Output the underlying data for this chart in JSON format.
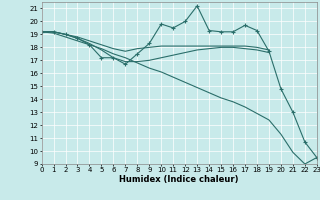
{
  "xlabel": "Humidex (Indice chaleur)",
  "bg_color": "#c8eaea",
  "grid_color": "#ffffff",
  "line_color": "#2a6e6a",
  "x_ticks": [
    0,
    1,
    2,
    3,
    4,
    5,
    6,
    7,
    8,
    9,
    10,
    11,
    12,
    13,
    14,
    15,
    16,
    17,
    18,
    19,
    20,
    21,
    22,
    23
  ],
  "y_ticks": [
    9,
    10,
    11,
    12,
    13,
    14,
    15,
    16,
    17,
    18,
    19,
    20,
    21
  ],
  "xlim": [
    0,
    23
  ],
  "ylim": [
    9,
    21.5
  ],
  "lines": [
    {
      "x": [
        0,
        1,
        2,
        3,
        4,
        5,
        6,
        7,
        8,
        9,
        10,
        11,
        12,
        13,
        14,
        15,
        16,
        17,
        18,
        19,
        20,
        21,
        22,
        23
      ],
      "y": [
        19.2,
        19.2,
        19.0,
        18.7,
        18.2,
        17.2,
        17.2,
        16.7,
        17.5,
        18.3,
        19.8,
        19.5,
        20.0,
        21.2,
        19.3,
        19.2,
        19.2,
        19.7,
        19.3,
        17.7,
        14.8,
        13.0,
        10.7,
        9.5
      ],
      "marker": true
    },
    {
      "x": [
        0,
        1,
        2,
        3,
        4,
        5,
        6,
        7,
        8,
        9,
        10,
        11,
        12,
        13,
        14,
        15,
        16,
        17,
        18,
        19
      ],
      "y": [
        19.2,
        19.2,
        19.0,
        18.8,
        18.5,
        18.2,
        17.9,
        17.7,
        17.9,
        18.0,
        18.1,
        18.1,
        18.1,
        18.1,
        18.1,
        18.1,
        18.1,
        18.1,
        18.0,
        17.8
      ],
      "marker": false
    },
    {
      "x": [
        0,
        1,
        2,
        3,
        4,
        5,
        6,
        7,
        8,
        9,
        10,
        11,
        12,
        13,
        14,
        15,
        16,
        17,
        18,
        19
      ],
      "y": [
        19.2,
        19.2,
        19.0,
        18.7,
        18.3,
        17.8,
        17.2,
        16.9,
        16.9,
        17.0,
        17.2,
        17.4,
        17.6,
        17.8,
        17.9,
        18.0,
        18.0,
        17.9,
        17.8,
        17.6
      ],
      "marker": false
    },
    {
      "x": [
        0,
        1,
        2,
        3,
        4,
        5,
        6,
        7,
        8,
        9,
        10,
        11,
        12,
        13,
        14,
        15,
        16,
        17,
        18,
        19,
        20,
        21,
        22,
        23
      ],
      "y": [
        19.2,
        19.1,
        18.8,
        18.5,
        18.2,
        17.9,
        17.5,
        17.2,
        16.8,
        16.4,
        16.1,
        15.7,
        15.3,
        14.9,
        14.5,
        14.1,
        13.8,
        13.4,
        12.9,
        12.4,
        11.3,
        9.9,
        9.0,
        9.5
      ],
      "marker": false
    }
  ]
}
